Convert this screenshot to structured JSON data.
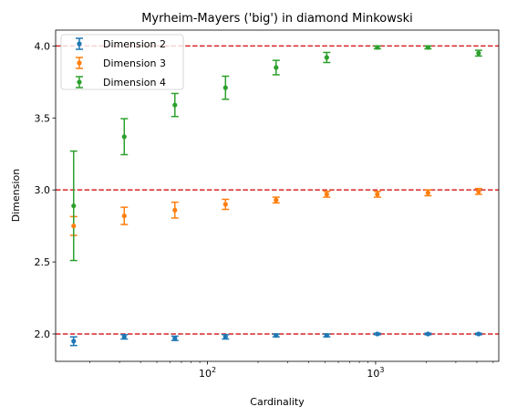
{
  "chart_data": {
    "type": "scatter",
    "title": "Myrheim-Mayers ('big') in diamond Minkowski",
    "xlabel": "Cardinality",
    "ylabel": "Dimension",
    "xscale": "log",
    "xlim": [
      12.5,
      5400
    ],
    "ylim": [
      1.81,
      4.11
    ],
    "xticks": [
      {
        "value": 100,
        "base": "10",
        "exp": "2"
      },
      {
        "value": 1000,
        "base": "10",
        "exp": "3"
      }
    ],
    "yticks": [
      {
        "value": 2.0,
        "label": "2.0"
      },
      {
        "value": 2.5,
        "label": "2.5"
      },
      {
        "value": 3.0,
        "label": "3.0"
      },
      {
        "value": 3.5,
        "label": "3.5"
      },
      {
        "value": 4.0,
        "label": "4.0"
      }
    ],
    "reference_lines": [
      2.0,
      3.0,
      4.0
    ],
    "reference_color": "#d62728",
    "legend_position": "upper-left",
    "series": [
      {
        "name": "Dimension 2",
        "color": "#1f77b4",
        "x": [
          16,
          32,
          64,
          128,
          256,
          512,
          1024,
          2048,
          4096
        ],
        "y": [
          1.95,
          1.98,
          1.97,
          1.98,
          1.99,
          1.99,
          2.0,
          2.0,
          2.0
        ],
        "yerr": [
          0.03,
          0.015,
          0.015,
          0.015,
          0.01,
          0.01,
          0.005,
          0.005,
          0.005
        ]
      },
      {
        "name": "Dimension 3",
        "color": "#ff7f0e",
        "x": [
          16,
          32,
          64,
          128,
          256,
          512,
          1024,
          2048,
          4096
        ],
        "y": [
          2.75,
          2.82,
          2.86,
          2.9,
          2.93,
          2.97,
          2.97,
          2.98,
          2.99
        ],
        "yerr": [
          0.065,
          0.06,
          0.055,
          0.035,
          0.02,
          0.02,
          0.02,
          0.02,
          0.02
        ]
      },
      {
        "name": "Dimension 4",
        "color": "#2ca02c",
        "x": [
          16,
          32,
          64,
          128,
          256,
          512,
          1024,
          2048,
          4096
        ],
        "y": [
          2.89,
          3.37,
          3.59,
          3.71,
          3.85,
          3.92,
          3.99,
          3.99,
          3.95
        ],
        "yerr": [
          0.38,
          0.125,
          0.08,
          0.08,
          0.05,
          0.035,
          0.01,
          0.01,
          0.02
        ]
      }
    ]
  }
}
